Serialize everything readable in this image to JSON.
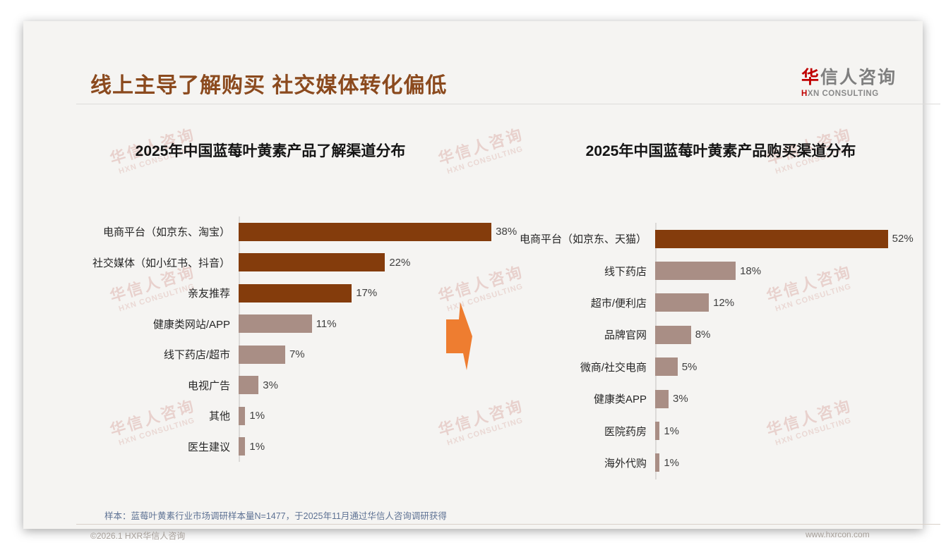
{
  "page": {
    "title": "线上主导了解购买 社交媒体转化偏低",
    "logo": {
      "zh_first": "华",
      "zh_rest": "信人咨询",
      "en_first": "H",
      "en_rest": "XN CONSULTING"
    },
    "watermark": {
      "zh": "华信人咨询",
      "en": "HXN CONSULTING"
    },
    "footnote": "样本：蓝莓叶黄素行业市场调研样本量N=1477，于2025年11月通过华信人咨询调研获得",
    "footer": {
      "left": "©2026.1 HXR华信人咨询",
      "right": "www.hxrcon.com"
    },
    "colors": {
      "title_brown": "#8b4a1e",
      "bar_dark": "#843c0c",
      "bar_light": "#a98e85",
      "arrow_orange": "#ee7d30",
      "card_bg": "#f5f4f2",
      "footnote_blue": "#5e7294"
    }
  },
  "chart_data": [
    {
      "type": "bar",
      "orientation": "horizontal",
      "title": "2025年中国蓝莓叶黄素产品了解渠道分布",
      "categories": [
        "电商平台（如京东、淘宝）",
        "社交媒体（如小红书、抖音）",
        "亲友推荐",
        "健康类网站/APP",
        "线下药店/超市",
        "电视广告",
        "其他",
        "医生建议"
      ],
      "values": [
        38,
        22,
        17,
        11,
        7,
        3,
        1,
        1
      ],
      "value_labels": [
        "38%",
        "22%",
        "17%",
        "11%",
        "7%",
        "3%",
        "1%",
        "1%"
      ],
      "bar_colors": [
        "#843c0c",
        "#843c0c",
        "#843c0c",
        "#a98e85",
        "#a98e85",
        "#a98e85",
        "#a98e85",
        "#a98e85"
      ],
      "xlim": [
        0,
        40
      ],
      "grid": false,
      "legend": "none"
    },
    {
      "type": "bar",
      "orientation": "horizontal",
      "title": "2025年中国蓝莓叶黄素产品购买渠道分布",
      "categories": [
        "电商平台（如京东、天猫）",
        "线下药店",
        "超市/便利店",
        "品牌官网",
        "微商/社交电商",
        "健康类APP",
        "医院药房",
        "海外代购"
      ],
      "values": [
        52,
        18,
        12,
        8,
        5,
        3,
        1,
        1
      ],
      "value_labels": [
        "52%",
        "18%",
        "12%",
        "8%",
        "5%",
        "3%",
        "1%",
        "1%"
      ],
      "bar_colors": [
        "#843c0c",
        "#a98e85",
        "#a98e85",
        "#a98e85",
        "#a98e85",
        "#a98e85",
        "#a98e85",
        "#a98e85"
      ],
      "xlim": [
        0,
        56
      ],
      "grid": false,
      "legend": "none"
    }
  ]
}
